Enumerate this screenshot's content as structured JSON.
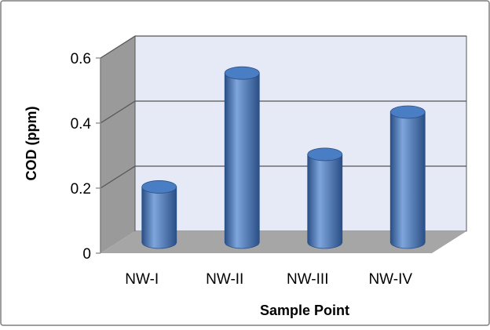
{
  "chart_data": {
    "type": "bar",
    "style": "3d-cylinder",
    "title": "",
    "xlabel": "Sample Point",
    "ylabel": "COD (ppm)",
    "categories": [
      "NW-I",
      "NW-II",
      "NW-III",
      "NW-IV"
    ],
    "series": [
      {
        "values": [
          0.17,
          0.52,
          0.27,
          0.4
        ]
      }
    ],
    "ylim": [
      0,
      0.6
    ],
    "yticks": [
      "0",
      "0.2",
      "0.4",
      "0.6"
    ],
    "grid": true,
    "legend": "none",
    "colors": {
      "bar": "#4a7ec4",
      "bar_dark": "#2a4f86",
      "bar_light": "#7ea6dc",
      "wall": "#e6eaf6",
      "side_wall": "#9a9a9a",
      "floor": "#a6a6a6",
      "gridline": "#555555",
      "frame": "#7f7f7f"
    }
  }
}
